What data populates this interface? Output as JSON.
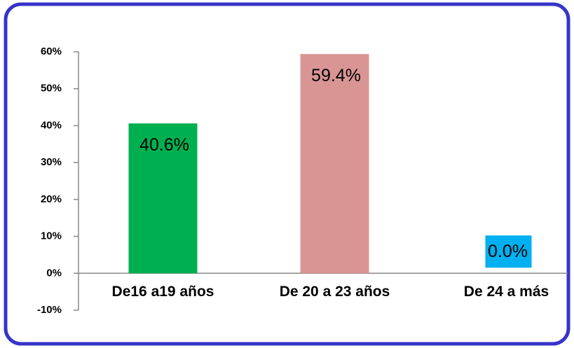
{
  "chart_data": {
    "type": "bar",
    "categories": [
      "De16 a19 años",
      "De 20 a 23 años",
      "De 24 a más"
    ],
    "values": [
      40.6,
      59.4,
      0.0
    ],
    "value_labels": [
      "40.6%",
      "59.4%",
      "0.0%"
    ],
    "colors": [
      "#00b050",
      "#d99594",
      "#00b0f0"
    ],
    "ylim": [
      -10,
      60
    ],
    "yticks": [
      {
        "value": -10,
        "label": "-10%"
      },
      {
        "value": 0,
        "label": "0%"
      },
      {
        "value": 10,
        "label": "10%"
      },
      {
        "value": 20,
        "label": "20%"
      },
      {
        "value": 30,
        "label": "30%"
      },
      {
        "value": 40,
        "label": "40%"
      },
      {
        "value": 50,
        "label": "50%"
      },
      {
        "value": 60,
        "label": "60%"
      }
    ],
    "grid": false
  }
}
